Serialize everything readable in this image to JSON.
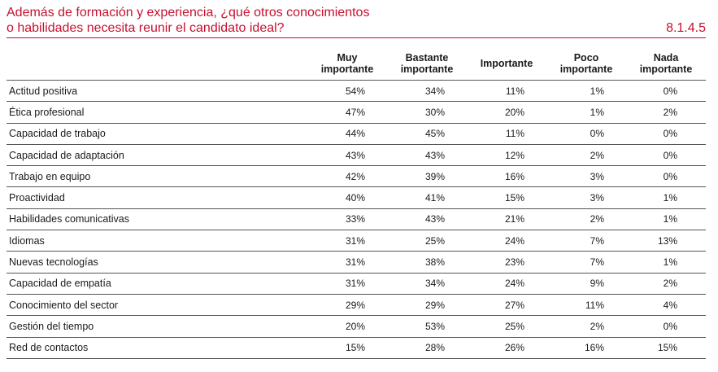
{
  "header": {
    "title_line1": "Además de formación y experiencia, ¿qué otros conocimientos",
    "title_line2": "o habilidades necesita reunir el candidato ideal?",
    "code": "8.1.4.5"
  },
  "colors": {
    "accent": "#c8102e",
    "rule": "#555555"
  },
  "table": {
    "columns": [
      {
        "line1": "Muy",
        "line2": "importante"
      },
      {
        "line1": "Bastante",
        "line2": "importante"
      },
      {
        "line1": "Importante",
        "line2": ""
      },
      {
        "line1": "Poco",
        "line2": "importante"
      },
      {
        "line1": "Nada",
        "line2": "importante"
      }
    ],
    "rows": [
      {
        "label": "Actitud positiva",
        "values": [
          "54%",
          "34%",
          "11%",
          "1%",
          "0%"
        ]
      },
      {
        "label": "Ética profesional",
        "values": [
          "47%",
          "30%",
          "20%",
          "1%",
          "2%"
        ]
      },
      {
        "label": "Capacidad de trabajo",
        "values": [
          "44%",
          "45%",
          "11%",
          "0%",
          "0%"
        ]
      },
      {
        "label": "Capacidad de adaptación",
        "values": [
          "43%",
          "43%",
          "12%",
          "2%",
          "0%"
        ]
      },
      {
        "label": "Trabajo en equipo",
        "values": [
          "42%",
          "39%",
          "16%",
          "3%",
          "0%"
        ]
      },
      {
        "label": "Proactividad",
        "values": [
          "40%",
          "41%",
          "15%",
          "3%",
          "1%"
        ]
      },
      {
        "label": "Habilidades comunicativas",
        "values": [
          "33%",
          "43%",
          "21%",
          "2%",
          "1%"
        ]
      },
      {
        "label": "Idiomas",
        "values": [
          "31%",
          "25%",
          "24%",
          "7%",
          "13%"
        ]
      },
      {
        "label": "Nuevas tecnologías",
        "values": [
          "31%",
          "38%",
          "23%",
          "7%",
          "1%"
        ]
      },
      {
        "label": "Capacidad de empatía",
        "values": [
          "31%",
          "34%",
          "24%",
          "9%",
          "2%"
        ]
      },
      {
        "label": "Conocimiento del sector",
        "values": [
          "29%",
          "29%",
          "27%",
          "11%",
          "4%"
        ]
      },
      {
        "label": "Gestión del tiempo",
        "values": [
          "20%",
          "53%",
          "25%",
          "2%",
          "0%"
        ]
      },
      {
        "label": "Red de contactos",
        "values": [
          "15%",
          "28%",
          "26%",
          "16%",
          "15%"
        ]
      }
    ]
  }
}
